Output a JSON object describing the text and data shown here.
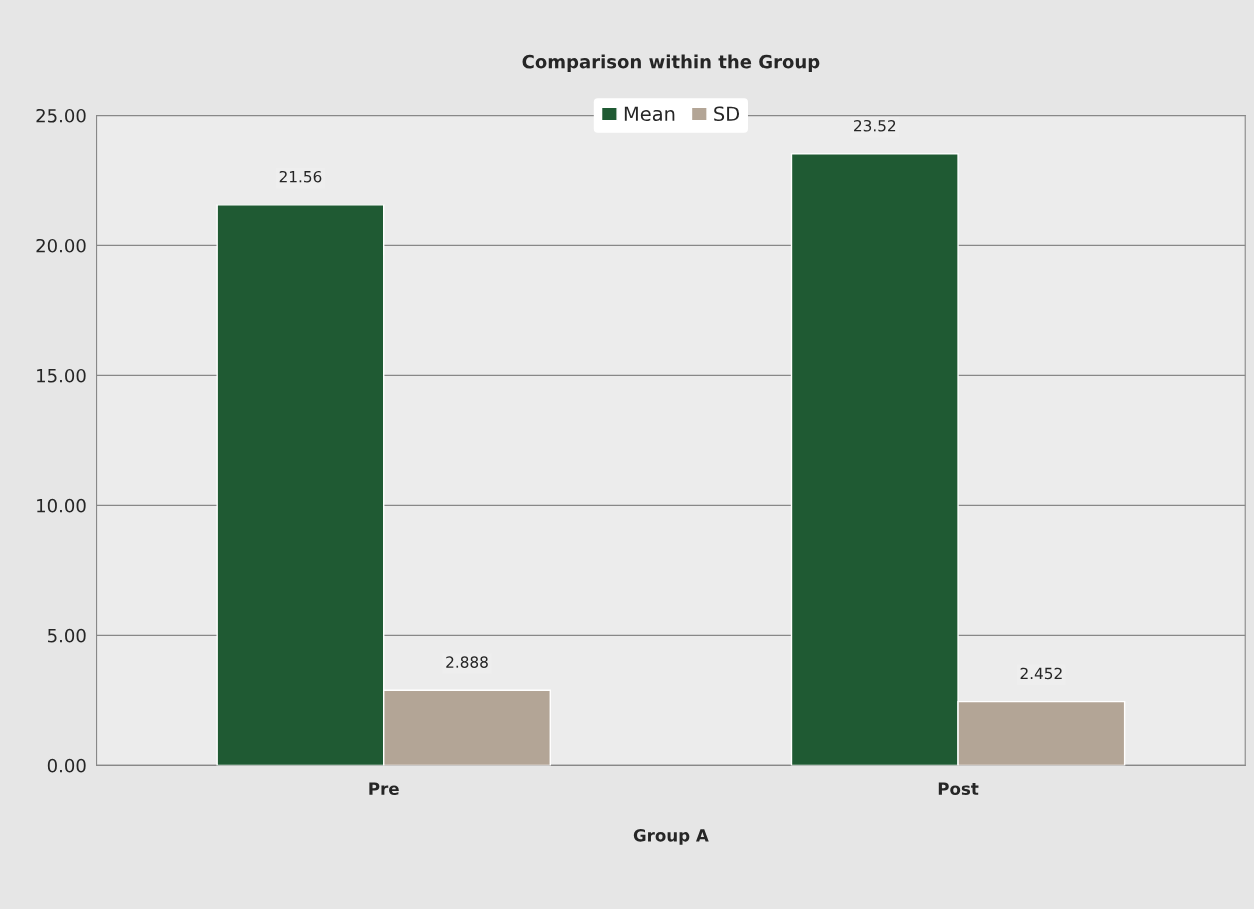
{
  "chart_data": {
    "type": "bar",
    "title": "Comparison within the Group",
    "xlabel": "Group A",
    "categories": [
      "Pre",
      "Post"
    ],
    "series": [
      {
        "name": "Mean",
        "color": "#1f5a33",
        "values": [
          21.56,
          23.52
        ]
      },
      {
        "name": "SD",
        "color": "#b3a596",
        "values": [
          2.888,
          2.452
        ]
      }
    ],
    "ylim": [
      0,
      25
    ],
    "yticks": [
      {
        "value": 0,
        "label": "0.00"
      },
      {
        "value": 5,
        "label": "5.00"
      },
      {
        "value": 10,
        "label": "10.00"
      },
      {
        "value": 15,
        "label": "15.00"
      },
      {
        "value": 20,
        "label": "20.00"
      },
      {
        "value": 25,
        "label": "25.00"
      }
    ],
    "grid": "y",
    "legend": "top",
    "data_labels": true
  }
}
